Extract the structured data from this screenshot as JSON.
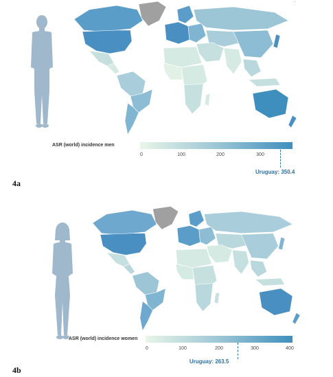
{
  "panels": [
    {
      "id": "4a",
      "panel_label": "4a",
      "figure": "male-silhouette",
      "legend_title": "ASR (world) incidence men",
      "scale_min": 0,
      "scale_max": 350,
      "ticks": [
        "0",
        "100",
        "200",
        "300"
      ],
      "tick_values": [
        0,
        100,
        200,
        300
      ],
      "marker_label": "Uruguay: 350.4",
      "marker_value": 350.4,
      "colors": {
        "low": "#e9f5e8",
        "mid": "#9cc6d6",
        "high": "#3f8fbe",
        "nodata": "#a0a0a0"
      }
    },
    {
      "id": "4b",
      "panel_label": "4b",
      "figure": "female-silhouette",
      "legend_title": "ASR (world) incidence women",
      "scale_min": 0,
      "scale_max": 400,
      "ticks": [
        "0",
        "100",
        "200",
        "300",
        "400"
      ],
      "tick_values": [
        0,
        100,
        200,
        300,
        400
      ],
      "marker_label": "Uruguay: 263.5",
      "marker_value": 263.5,
      "colors": {
        "low": "#e9f5e8",
        "mid": "#9cc6d6",
        "high": "#3f8fbe",
        "nodata": "#a0a0a0"
      }
    }
  ]
}
